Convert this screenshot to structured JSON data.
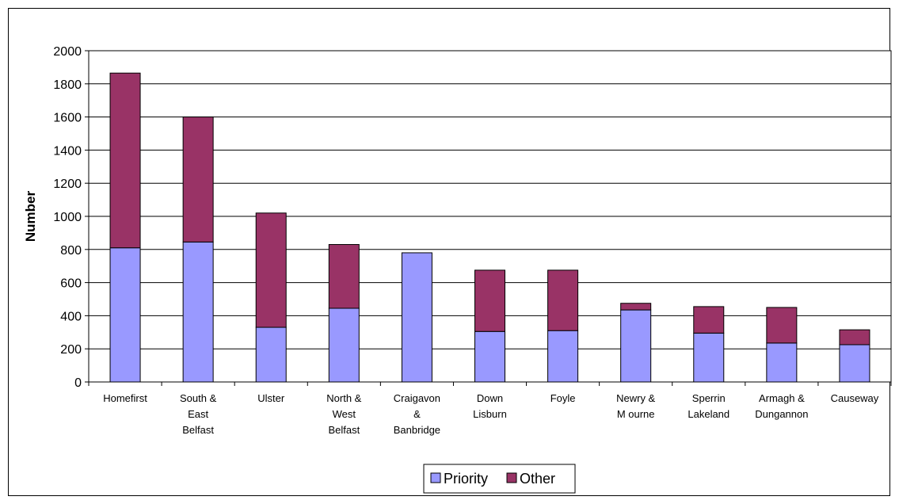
{
  "chart_data": {
    "type": "bar",
    "stacked": true,
    "title": "",
    "xlabel": "",
    "ylabel": "Number",
    "ylim": [
      0,
      2000
    ],
    "yticks": [
      0,
      200,
      400,
      600,
      800,
      1000,
      1200,
      1400,
      1600,
      1800,
      2000
    ],
    "grid": true,
    "legend_position": "bottom",
    "categories": [
      "Homefirst",
      "South & East Belfast",
      "Ulster",
      "North & West Belfast",
      "Craigavon & Banbridge",
      "Down Lisburn",
      "Foyle",
      "Newry & Mourne",
      "Sperrin Lakeland",
      "Armagh & Dungannon",
      "Causeway"
    ],
    "category_label_lines": [
      [
        "Homefirst"
      ],
      [
        "South &",
        "East",
        "Belfast"
      ],
      [
        "Ulster"
      ],
      [
        "North &",
        "West",
        "Belfast"
      ],
      [
        "Craigavon",
        "&",
        "Banbridge"
      ],
      [
        "Down",
        "Lisburn"
      ],
      [
        "Foyle"
      ],
      [
        "Newry &",
        "M ourne"
      ],
      [
        "Sperrin",
        "Lakeland"
      ],
      [
        "Armagh &",
        "Dungannon"
      ],
      [
        "Causeway"
      ]
    ],
    "series": [
      {
        "name": "Priority",
        "color": "#9999ff",
        "values": [
          810,
          845,
          330,
          445,
          780,
          305,
          310,
          435,
          295,
          235,
          225
        ]
      },
      {
        "name": "Other",
        "color": "#993366",
        "values": [
          1055,
          755,
          690,
          385,
          0,
          370,
          365,
          40,
          160,
          215,
          90
        ]
      }
    ]
  }
}
